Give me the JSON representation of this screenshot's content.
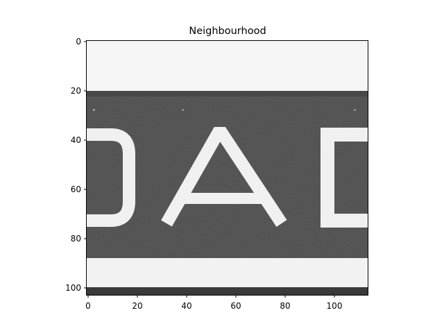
{
  "figure": {
    "title": "Neighbourhood",
    "image_description": "",
    "x_ticks": [
      "0",
      "20",
      "40",
      "60",
      "80",
      "100"
    ],
    "y_ticks": [
      "0",
      "20",
      "40",
      "60",
      "80",
      "100"
    ],
    "colors": {
      "light": "#f4f4f4",
      "band": "#4a4a4a",
      "band_dark": "#3a3a3a",
      "letters": "#f0f0f0",
      "bottom_edge": "#2e2e2e"
    }
  }
}
